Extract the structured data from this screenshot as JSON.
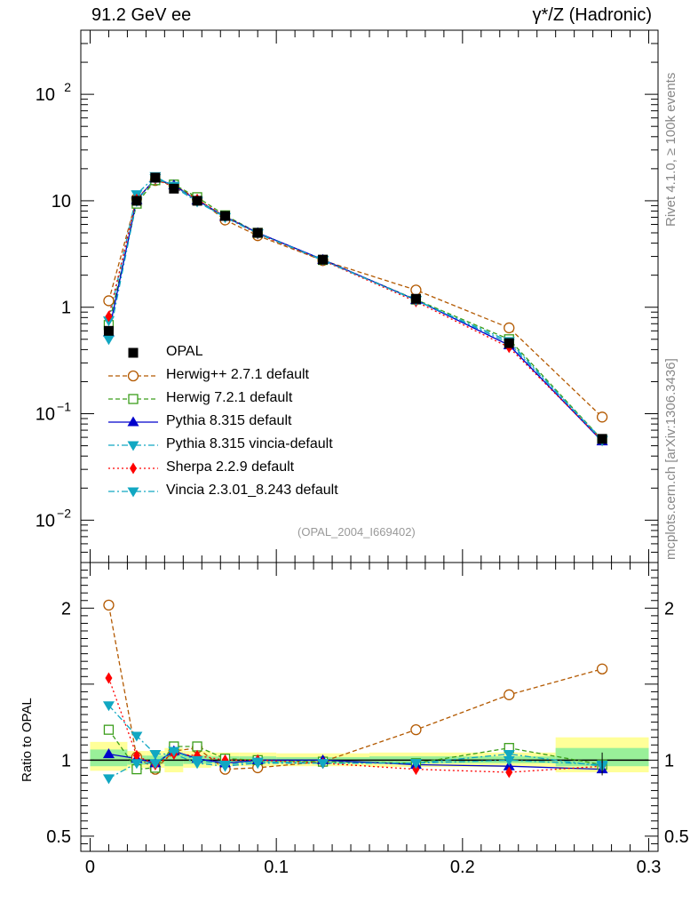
{
  "header": {
    "left_title": "91.2 GeV ee",
    "right_title": "γ*/Z (Hadronic)"
  },
  "side": {
    "rivet": "Rivet 4.1.0, ≥ 100k events",
    "mcplots": "mcplots.cern.ch [arXiv:1306.3436]"
  },
  "analysis_id": "(OPAL_2004_I669402)",
  "ratio_ylabel": "Ratio to OPAL",
  "chart_data": {
    "type": "line",
    "x": [
      0.01,
      0.025,
      0.035,
      0.045,
      0.0575,
      0.0725,
      0.09,
      0.125,
      0.175,
      0.225,
      0.275
    ],
    "main": {
      "yscale": "log",
      "ylim": [
        0.004,
        400
      ],
      "yticks": [
        {
          "v": 0.01,
          "label": "10",
          "sup": "−2"
        },
        {
          "v": 0.1,
          "label": "10",
          "sup": "−1"
        },
        {
          "v": 1,
          "label": "1",
          "sup": ""
        },
        {
          "v": 10,
          "label": "10",
          "sup": ""
        },
        {
          "v": 100,
          "label": "10",
          "sup": "2"
        }
      ]
    },
    "ratio": {
      "ylabel": "Ratio to OPAL",
      "ylim": [
        0.4,
        2.3
      ],
      "yticks": [
        {
          "v": 0.5,
          "label": "0.5"
        },
        {
          "v": 1,
          "label": "1"
        },
        {
          "v": 2,
          "label": "2"
        }
      ],
      "bands": [
        {
          "x0": 0.0,
          "x1": 0.02,
          "yellow": [
            0.93,
            1.12
          ],
          "green": [
            0.96,
            1.07
          ]
        },
        {
          "x0": 0.02,
          "x1": 0.03,
          "yellow": [
            0.95,
            1.06
          ],
          "green": [
            0.97,
            1.03
          ]
        },
        {
          "x0": 0.03,
          "x1": 0.04,
          "yellow": [
            0.95,
            1.06
          ],
          "green": [
            0.975,
            1.03
          ]
        },
        {
          "x0": 0.04,
          "x1": 0.05,
          "yellow": [
            0.92,
            1.08
          ],
          "green": [
            0.96,
            1.04
          ]
        },
        {
          "x0": 0.05,
          "x1": 0.065,
          "yellow": [
            0.95,
            1.06
          ],
          "green": [
            0.975,
            1.03
          ]
        },
        {
          "x0": 0.065,
          "x1": 0.08,
          "yellow": [
            0.96,
            1.05
          ],
          "green": [
            0.98,
            1.025
          ]
        },
        {
          "x0": 0.08,
          "x1": 0.1,
          "yellow": [
            0.96,
            1.05
          ],
          "green": [
            0.98,
            1.025
          ]
        },
        {
          "x0": 0.1,
          "x1": 0.15,
          "yellow": [
            0.96,
            1.045
          ],
          "green": [
            0.98,
            1.02
          ]
        },
        {
          "x0": 0.15,
          "x1": 0.2,
          "yellow": [
            0.955,
            1.05
          ],
          "green": [
            0.98,
            1.025
          ]
        },
        {
          "x0": 0.2,
          "x1": 0.25,
          "yellow": [
            0.955,
            1.05
          ],
          "green": [
            0.98,
            1.025
          ]
        },
        {
          "x0": 0.25,
          "x1": 0.3,
          "yellow": [
            0.92,
            1.15
          ],
          "green": [
            0.96,
            1.08
          ]
        }
      ]
    },
    "xlim": [
      -0.005,
      0.305
    ],
    "xticks": [
      {
        "v": 0,
        "label": "0"
      },
      {
        "v": 0.1,
        "label": "0.1"
      },
      {
        "v": 0.2,
        "label": "0.2"
      },
      {
        "v": 0.3,
        "label": "0.3"
      }
    ],
    "data": {
      "name": "OPAL",
      "values": [
        0.6,
        10.0,
        16.5,
        13.0,
        10.0,
        7.2,
        5.0,
        2.8,
        1.2,
        0.46,
        0.058
      ]
    },
    "series": [
      {
        "name": "Herwig++ 2.7.1 default",
        "color": "#b35900",
        "dash": "5,3",
        "marker": "circle-open",
        "values": [
          1.15,
          10.5,
          15.5,
          14.0,
          10.5,
          6.6,
          4.7,
          2.75,
          1.45,
          0.64,
          0.093
        ],
        "ratio": [
          2.02,
          1.02,
          0.94,
          1.06,
          1.08,
          0.94,
          0.95,
          0.99,
          1.2,
          1.43,
          1.6
        ]
      },
      {
        "name": "Herwig 7.2.1 default",
        "color": "#3b9e1b",
        "dash": "5,3",
        "marker": "square-open",
        "values": [
          0.68,
          9.4,
          15.6,
          14.2,
          10.8,
          7.3,
          5.0,
          2.78,
          1.18,
          0.5,
          0.057
        ],
        "ratio": [
          1.2,
          0.94,
          0.95,
          1.09,
          1.09,
          1.01,
          1.0,
          0.99,
          0.98,
          1.08,
          0.97
        ]
      },
      {
        "name": "Pythia 8.315 default",
        "color": "#0000cc",
        "dash": "",
        "marker": "triangle-up",
        "values": [
          0.58,
          10.2,
          16.2,
          14.0,
          10.1,
          7.1,
          5.0,
          2.8,
          1.17,
          0.44,
          0.055
        ],
        "ratio": [
          1.04,
          1.01,
          0.98,
          1.06,
          1.01,
          0.98,
          1.0,
          1.0,
          0.97,
          0.96,
          0.94
        ]
      },
      {
        "name": "Pythia 8.315 vincia-default",
        "color": "#11a7c2",
        "dash": "7,3,2,3",
        "marker": "triangle-down",
        "values": [
          0.75,
          11.5,
          17.0,
          13.5,
          9.8,
          7.0,
          4.9,
          2.75,
          1.17,
          0.46,
          0.057
        ],
        "ratio": [
          1.36,
          1.16,
          1.04,
          1.04,
          0.98,
          0.96,
          0.98,
          0.98,
          0.98,
          1.0,
          0.97
        ]
      },
      {
        "name": "Sherpa 2.2.9 default",
        "color": "#ff0000",
        "dash": "2,3",
        "marker": "diamond",
        "values": [
          0.82,
          10.3,
          16.0,
          13.5,
          10.3,
          7.1,
          4.9,
          2.75,
          1.13,
          0.42,
          0.056
        ],
        "ratio": [
          1.54,
          1.03,
          0.97,
          1.04,
          1.03,
          1.0,
          1.0,
          0.98,
          0.94,
          0.92,
          0.96
        ]
      },
      {
        "name": "Vincia 2.3.01_8.243 default",
        "color": "#11a7c2",
        "dash": "7,3,2,3",
        "marker": "triangle-down",
        "values": [
          0.5,
          9.9,
          16.3,
          13.8,
          10.0,
          7.0,
          4.95,
          2.78,
          1.16,
          0.48,
          0.056
        ],
        "ratio": [
          0.88,
          0.98,
          0.98,
          1.06,
          1.0,
          0.97,
          0.99,
          0.98,
          0.98,
          1.04,
          0.96
        ]
      }
    ]
  }
}
